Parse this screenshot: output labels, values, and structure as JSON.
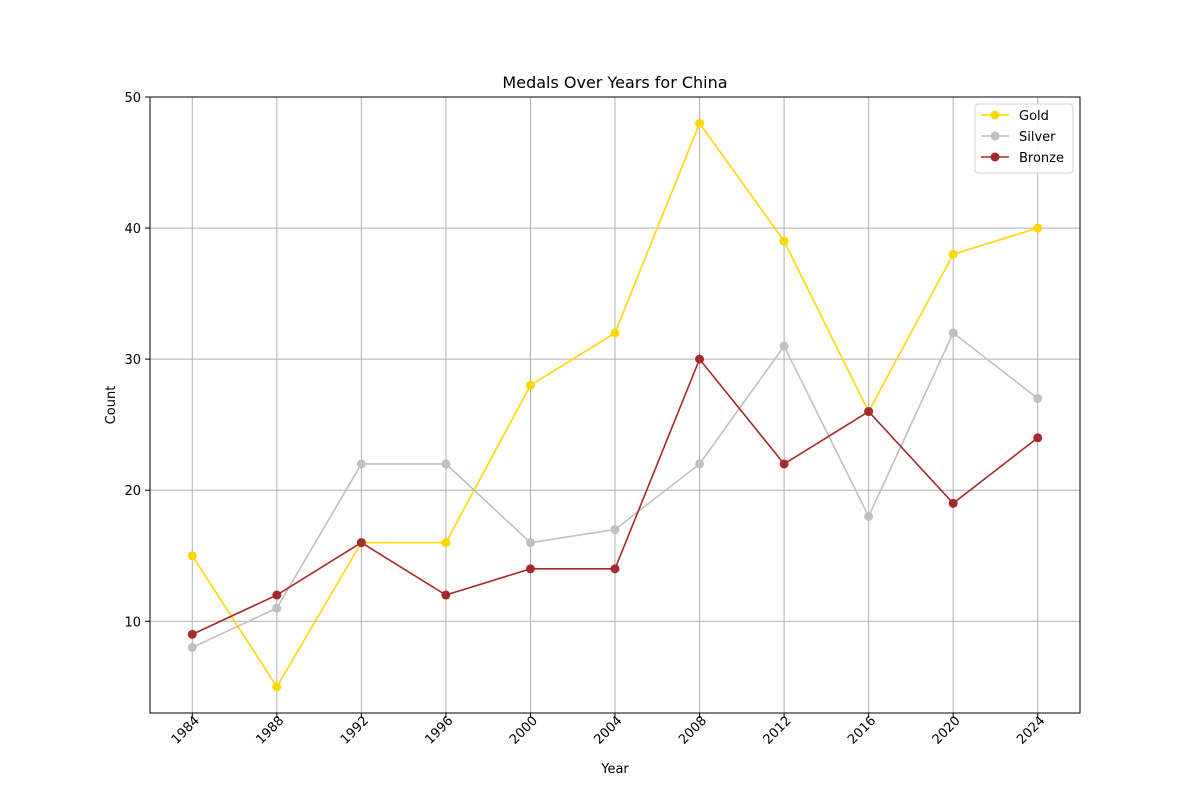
{
  "chart_data": {
    "type": "line",
    "title": "Medals Over Years for China",
    "xlabel": "Year",
    "ylabel": "Count",
    "x": [
      1984,
      1988,
      1992,
      1996,
      2000,
      2004,
      2008,
      2012,
      2016,
      2020,
      2024
    ],
    "x_tick_labels": [
      "1984",
      "1988",
      "1992",
      "1996",
      "2000",
      "2004",
      "2008",
      "2012",
      "2016",
      "2020",
      "2024"
    ],
    "y_ticks": [
      10,
      20,
      30,
      40,
      50
    ],
    "y_tick_labels": [
      "10",
      "20",
      "30",
      "40",
      "50"
    ],
    "ylim": [
      3,
      50
    ],
    "grid": true,
    "legend_position": "top-right",
    "series": [
      {
        "name": "Gold",
        "color": "#FFD700",
        "values": [
          15,
          5,
          16,
          16,
          28,
          32,
          48,
          39,
          26,
          38,
          40
        ]
      },
      {
        "name": "Silver",
        "color": "#C0C0C0",
        "values": [
          8,
          11,
          22,
          22,
          16,
          17,
          22,
          31,
          18,
          32,
          27
        ]
      },
      {
        "name": "Bronze",
        "color": "#A52A2A",
        "values": [
          9,
          12,
          16,
          12,
          14,
          14,
          30,
          22,
          26,
          19,
          24
        ]
      }
    ]
  }
}
